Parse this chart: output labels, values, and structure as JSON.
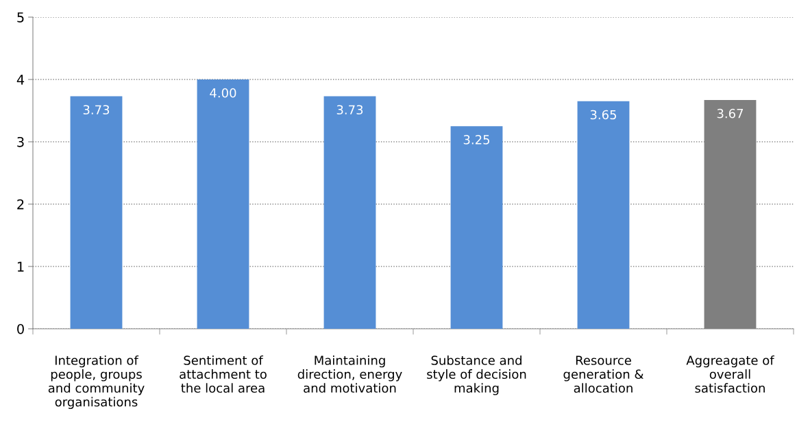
{
  "chart_data": {
    "type": "bar",
    "categories": [
      "Integration of\npeople, groups\nand community\norganisations",
      "Sentiment of\nattachment to\nthe local area",
      "Maintaining\ndirection, energy\nand motivation",
      "Substance and\nstyle of decision\nmaking",
      "Resource\ngeneration &\nallocation",
      "Aggreagate of\noverall\nsatisfaction"
    ],
    "values": [
      3.73,
      4.0,
      3.73,
      3.25,
      3.65,
      3.67
    ],
    "colors": [
      "#558ed5",
      "#558ed5",
      "#558ed5",
      "#558ed5",
      "#558ed5",
      "#7f7f7f"
    ],
    "value_labels": [
      "3.73",
      "4.00",
      "3.73",
      "3.25",
      "3.65",
      "3.67"
    ],
    "ylim": [
      0,
      5
    ],
    "yticks": [
      0,
      1,
      2,
      3,
      4,
      5
    ],
    "grid": "y",
    "legend": false
  }
}
